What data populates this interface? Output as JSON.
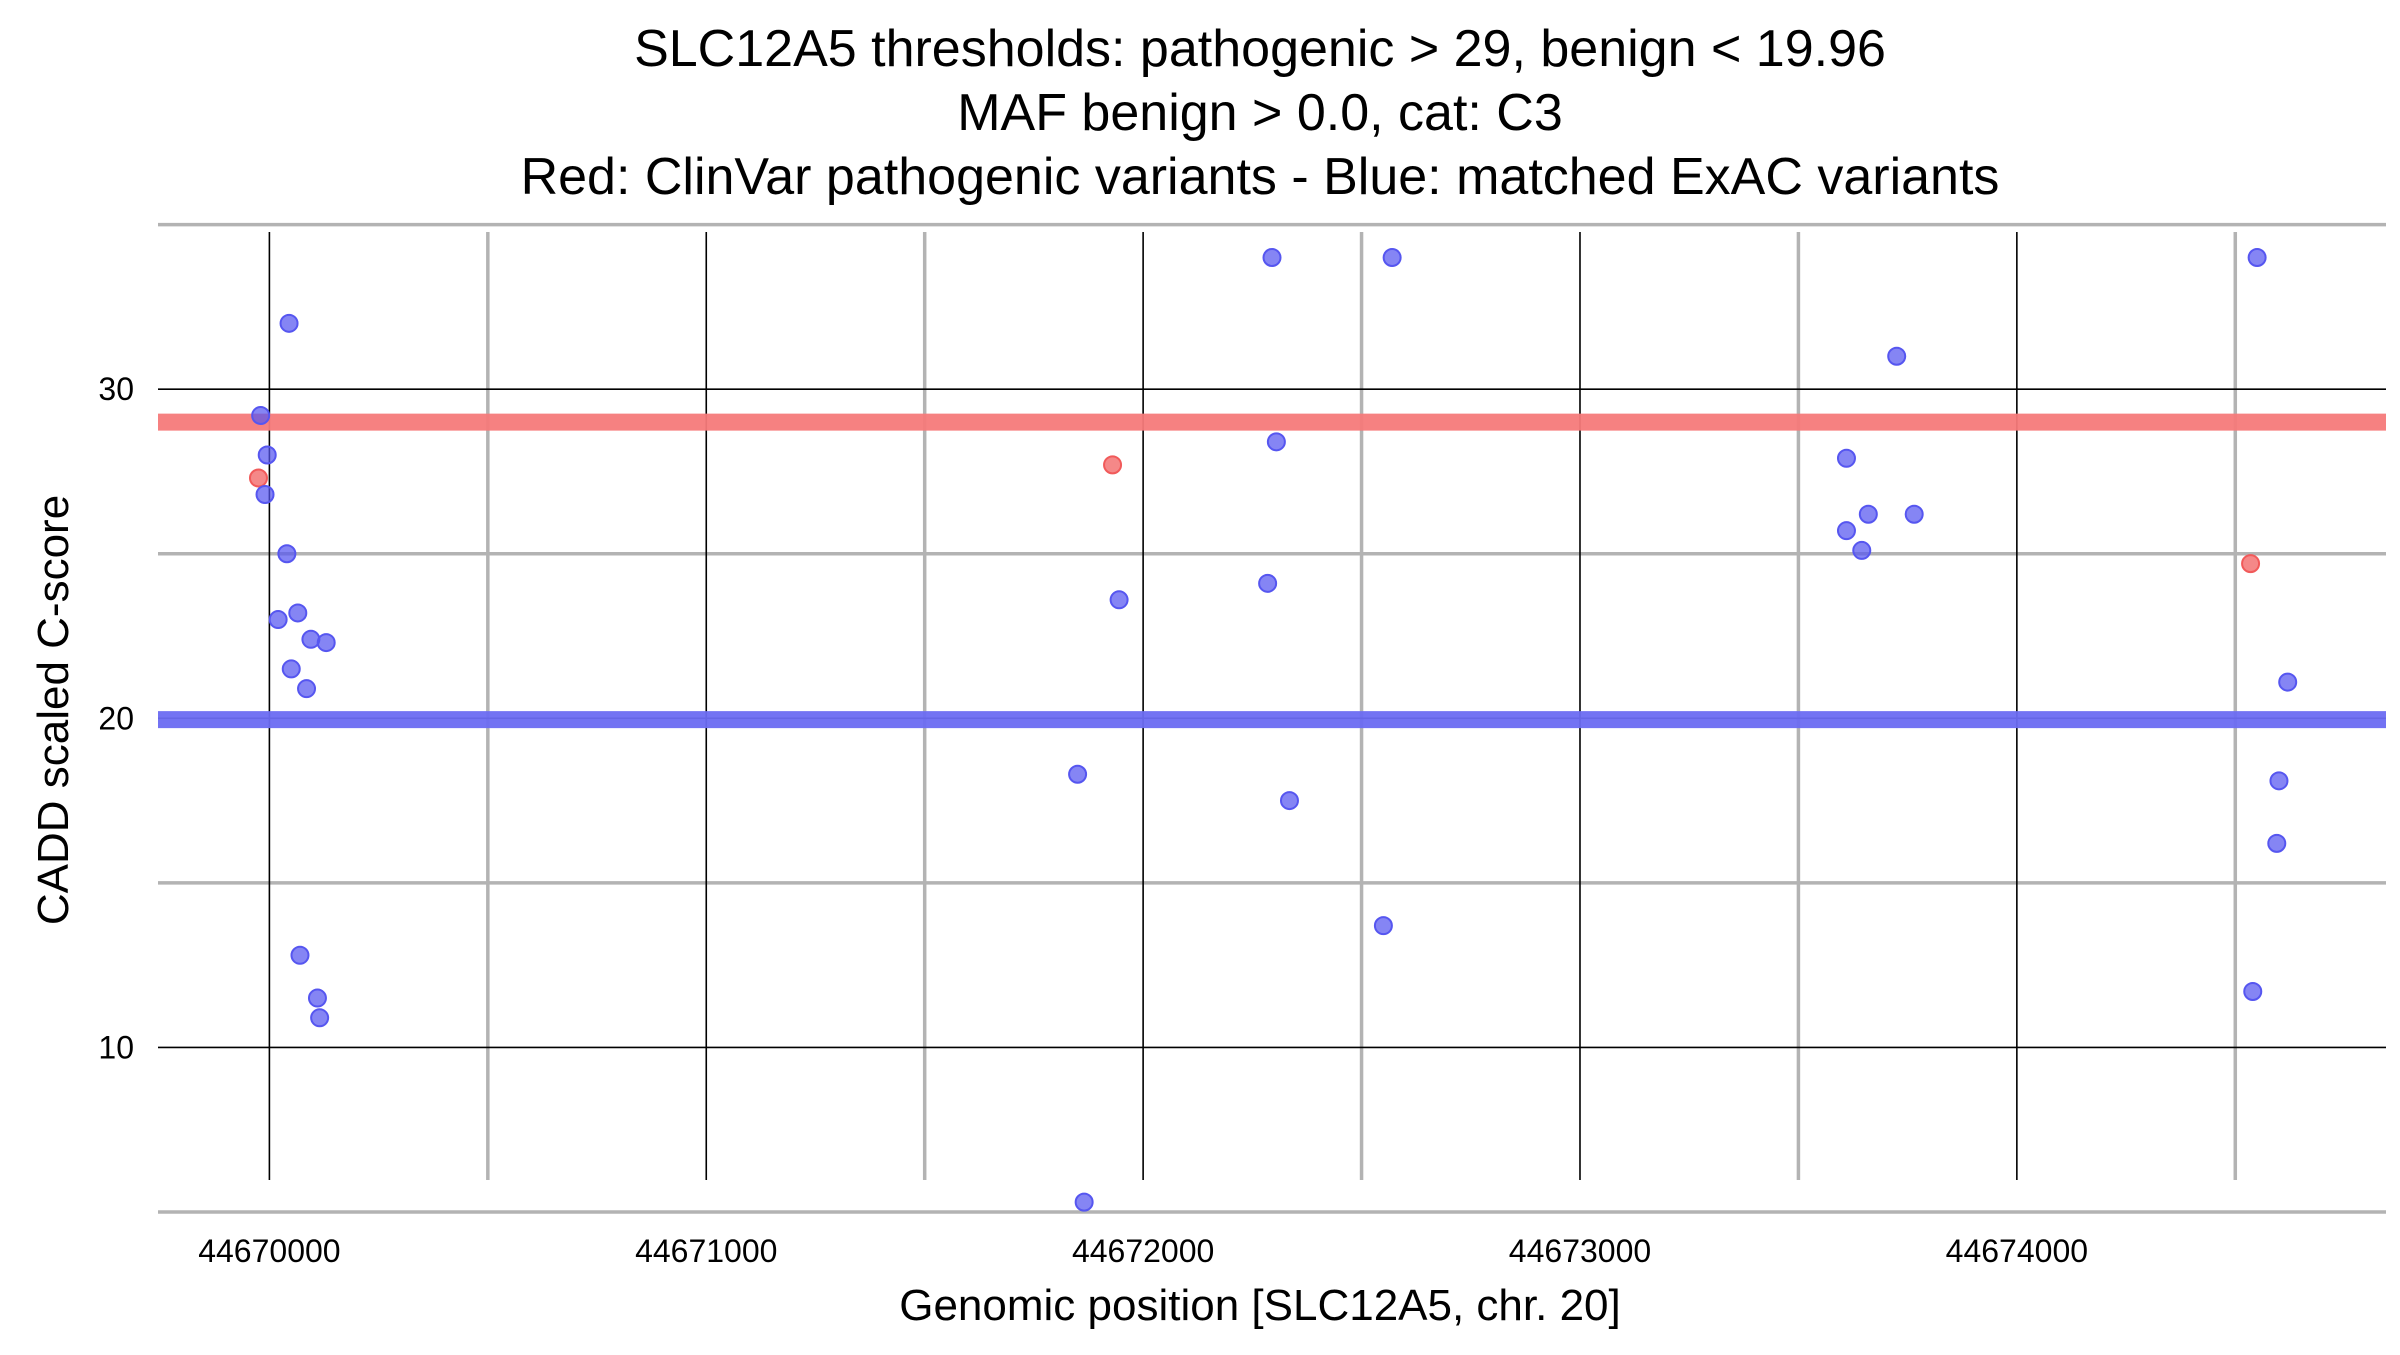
{
  "chart_data": {
    "type": "scatter",
    "title_lines": [
      "SLC12A5 thresholds: pathogenic > 29, benign < 19.96",
      "MAF benign > 0.0, cat: C3",
      "Red: ClinVar pathogenic variants - Blue: matched ExAC variants"
    ],
    "xlabel": "Genomic position [SLC12A5, chr. 20]",
    "ylabel": "CADD scaled C-score",
    "xlim": [
      44669745,
      44674845
    ],
    "ylim": [
      5,
      35.2
    ],
    "x_major_ticks": [
      44670000,
      44671000,
      44672000,
      44673000,
      44674000
    ],
    "x_tick_labels": [
      "44670000",
      "44671000",
      "44672000",
      "44673000",
      "44674000"
    ],
    "x_minor_ticks": [
      44670500,
      44671500,
      44672500,
      44673500,
      44674500
    ],
    "y_major_ticks": [
      10,
      20,
      30
    ],
    "y_tick_labels": [
      "10",
      "20",
      "30"
    ],
    "y_minor_ticks": [
      5,
      15,
      25,
      35
    ],
    "grid": true,
    "thresholds": [
      {
        "name": "pathogenic",
        "value": 29,
        "color": "#f57a7a"
      },
      {
        "name": "benign",
        "value": 19.96,
        "color": "#6b6bf2"
      }
    ],
    "series": [
      {
        "color": "#f15a5a",
        "points": [
          {
            "x": 44669975,
            "y": 27.3
          },
          {
            "x": 44671930,
            "y": 27.7
          },
          {
            "x": 44674535,
            "y": 24.7
          }
        ]
      },
      {
        "color": "#5656f0",
        "points": [
          {
            "x": 44669980,
            "y": 29.2
          },
          {
            "x": 44669995,
            "y": 28.0
          },
          {
            "x": 44669990,
            "y": 26.8
          },
          {
            "x": 44670045,
            "y": 32.0
          },
          {
            "x": 44670040,
            "y": 25.0
          },
          {
            "x": 44670020,
            "y": 23.0
          },
          {
            "x": 44670065,
            "y": 23.2
          },
          {
            "x": 44670095,
            "y": 22.4
          },
          {
            "x": 44670130,
            "y": 22.3
          },
          {
            "x": 44670050,
            "y": 21.5
          },
          {
            "x": 44670085,
            "y": 20.9
          },
          {
            "x": 44670070,
            "y": 12.8
          },
          {
            "x": 44670110,
            "y": 11.5
          },
          {
            "x": 44670115,
            "y": 10.9
          },
          {
            "x": 44671945,
            "y": 23.6
          },
          {
            "x": 44671850,
            "y": 18.3
          },
          {
            "x": 44671865,
            "y": 5.3
          },
          {
            "x": 44672295,
            "y": 34.0
          },
          {
            "x": 44672305,
            "y": 28.4
          },
          {
            "x": 44672285,
            "y": 24.1
          },
          {
            "x": 44672335,
            "y": 17.5
          },
          {
            "x": 44672570,
            "y": 34.0
          },
          {
            "x": 44672550,
            "y": 13.7
          },
          {
            "x": 44673725,
            "y": 31.0
          },
          {
            "x": 44673610,
            "y": 27.9
          },
          {
            "x": 44673660,
            "y": 26.2
          },
          {
            "x": 44673765,
            "y": 26.2
          },
          {
            "x": 44673610,
            "y": 25.7
          },
          {
            "x": 44673645,
            "y": 25.1
          },
          {
            "x": 44674550,
            "y": 34.0
          },
          {
            "x": 44674620,
            "y": 21.1
          },
          {
            "x": 44674600,
            "y": 18.1
          },
          {
            "x": 44674595,
            "y": 16.2
          },
          {
            "x": 44674540,
            "y": 11.7
          }
        ]
      }
    ]
  }
}
